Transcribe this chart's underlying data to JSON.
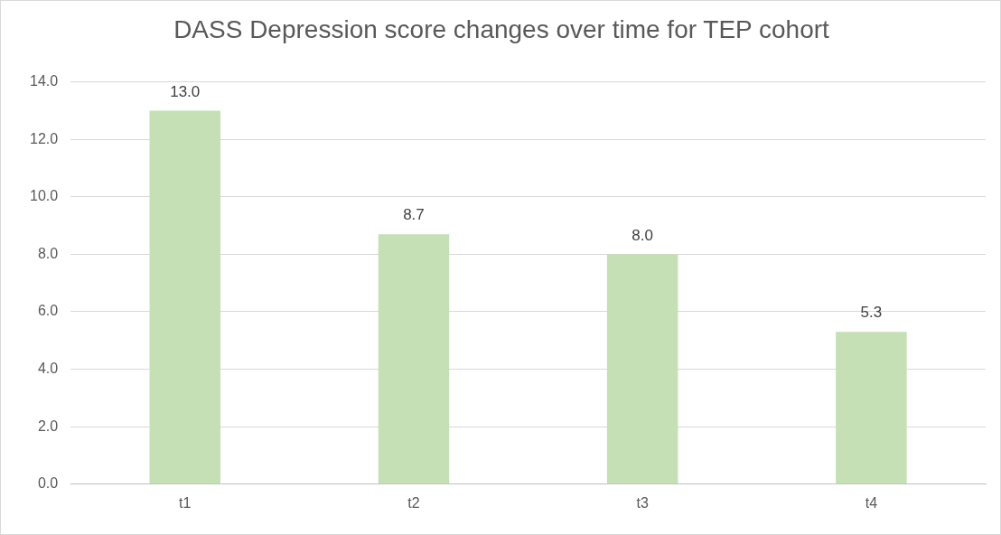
{
  "chart_data": {
    "type": "bar",
    "title": "DASS Depression score changes over time for TEP cohort",
    "categories": [
      "t1",
      "t2",
      "t3",
      "t4"
    ],
    "values": [
      13.0,
      8.7,
      8.0,
      5.3
    ],
    "value_labels": [
      "13.0",
      "8.7",
      "8.0",
      "5.3"
    ],
    "color": "#c5e0b4",
    "ylim": [
      0,
      14
    ],
    "yticks": [
      {
        "value": 0,
        "label": "0.0"
      },
      {
        "value": 2,
        "label": "2.0"
      },
      {
        "value": 4,
        "label": "4.0"
      },
      {
        "value": 6,
        "label": "6.0"
      },
      {
        "value": 8,
        "label": "8.0"
      },
      {
        "value": 10,
        "label": "10.0"
      },
      {
        "value": 12,
        "label": "12.0"
      },
      {
        "value": 14,
        "label": "14.0"
      }
    ],
    "grid": "y"
  }
}
